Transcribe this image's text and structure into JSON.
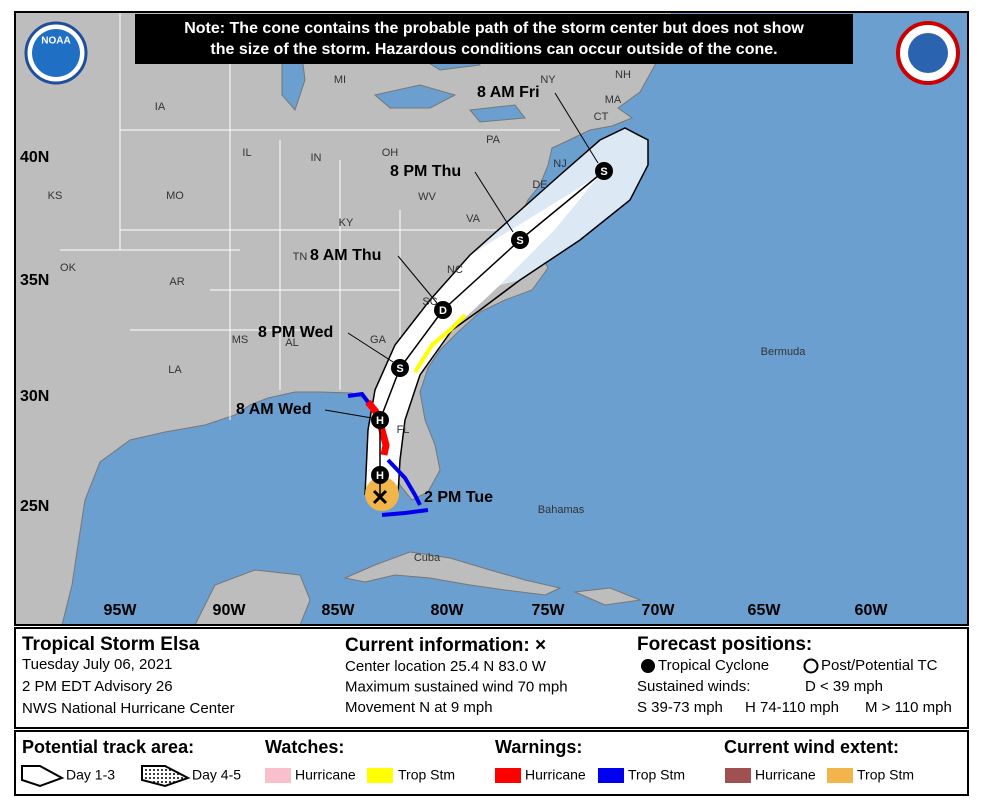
{
  "logo": "NOAA",
  "note": [
    "Note: The cone contains the probable path of the storm center but does not show",
    "the size of the storm. Hazardous conditions can occur outside of the cone."
  ],
  "map": {
    "latitude_labels": [
      "40N",
      "35N",
      "30N",
      "25N"
    ],
    "longitude_labels": [
      "95W",
      "90W",
      "85W",
      "80W",
      "75W",
      "70W",
      "65W",
      "60W"
    ],
    "places": [
      "MI",
      "IA",
      "NY",
      "NH",
      "MA",
      "CT",
      "PA",
      "NJ",
      "DE",
      "OH",
      "IL",
      "IN",
      "KS",
      "MO",
      "WV",
      "VA",
      "KY",
      "OK",
      "AR",
      "TN",
      "NC",
      "SC",
      "GA",
      "AL",
      "MS",
      "LA",
      "FL",
      "Bermuda",
      "Bahamas",
      "Cuba"
    ],
    "symbols": [
      "H",
      "H",
      "S",
      "D",
      "S",
      "S"
    ],
    "time_labels": [
      "2 PM Tue",
      "8 AM Wed",
      "8 PM Wed",
      "8 AM Thu",
      "8 PM Thu",
      "8 AM Fri"
    ]
  },
  "info": {
    "storm": {
      "title": "Tropical Storm Elsa",
      "lines": [
        "Tuesday July 06, 2021",
        "2 PM EDT Advisory 26",
        "NWS National Hurricane Center"
      ]
    },
    "current": {
      "title": "Current information: ×",
      "lines": [
        "Center location 25.4 N 83.0 W",
        "Maximum sustained wind 70 mph",
        "Movement N at 9 mph"
      ]
    },
    "forecast": {
      "title": "Forecast positions:",
      "items": [
        "Tropical Cyclone",
        "Post/Potential TC"
      ],
      "lines": [
        "Sustained winds:",
        "D < 39 mph",
        "S 39-73 mph",
        "H 74-110 mph",
        "M > 110 mph"
      ]
    }
  },
  "legend": {
    "track": {
      "title": "Potential track area:",
      "items": [
        "Day 1-3",
        "Day 4-5"
      ]
    },
    "watches": {
      "title": "Watches:",
      "items": [
        "Hurricane",
        "Trop Stm"
      ]
    },
    "warnings": {
      "title": "Warnings:",
      "items": [
        "Hurricane",
        "Trop Stm"
      ]
    },
    "wind": {
      "title": "Current wind extent:",
      "items": [
        "Hurricane",
        "Trop Stm"
      ]
    }
  }
}
